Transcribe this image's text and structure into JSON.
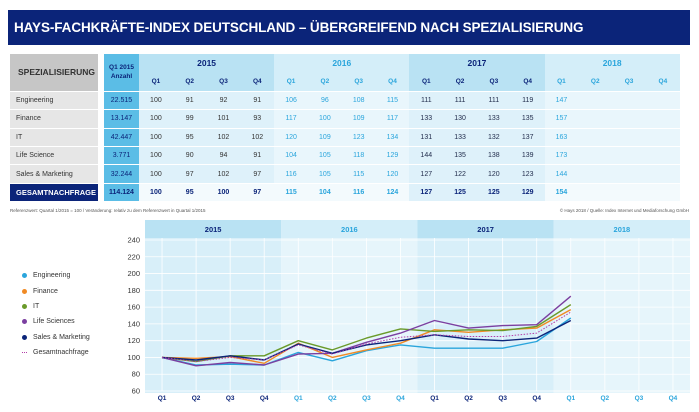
{
  "title": "HAYS-FACHKRÄFTE-INDEX DEUTSCHLAND – ÜBERGREIFEND NACH SPEZIALISIERUNG",
  "table": {
    "header_specialization": "SPEZIALISIERUNG",
    "header_count_line1": "Q1 2015",
    "header_count_line2": "Anzahl",
    "years": [
      "2015",
      "2016",
      "2017",
      "2018"
    ],
    "quarters": [
      "Q1",
      "Q2",
      "Q3",
      "Q4"
    ],
    "rows": [
      {
        "label": "Engineering",
        "count": "22.515",
        "values": [
          "100",
          "91",
          "92",
          "91",
          "106",
          "96",
          "108",
          "115",
          "111",
          "111",
          "111",
          "119",
          "147",
          "",
          "",
          ""
        ]
      },
      {
        "label": "Finance",
        "count": "13.147",
        "values": [
          "100",
          "99",
          "101",
          "93",
          "117",
          "100",
          "109",
          "117",
          "133",
          "130",
          "133",
          "135",
          "157",
          "",
          "",
          ""
        ]
      },
      {
        "label": "IT",
        "count": "42.447",
        "values": [
          "100",
          "95",
          "102",
          "102",
          "120",
          "109",
          "123",
          "134",
          "131",
          "133",
          "132",
          "137",
          "163",
          "",
          "",
          ""
        ]
      },
      {
        "label": "Life Science",
        "count": "3.771",
        "values": [
          "100",
          "90",
          "94",
          "91",
          "104",
          "105",
          "118",
          "129",
          "144",
          "135",
          "138",
          "139",
          "173",
          "",
          "",
          ""
        ]
      },
      {
        "label": "Sales & Marketing",
        "count": "32.244",
        "values": [
          "100",
          "97",
          "102",
          "97",
          "116",
          "105",
          "115",
          "120",
          "127",
          "122",
          "120",
          "123",
          "144",
          "",
          "",
          ""
        ]
      }
    ],
    "total": {
      "label": "GESAMTNACHFRAGE",
      "count": "114.124",
      "values": [
        "100",
        "95",
        "100",
        "97",
        "115",
        "104",
        "116",
        "124",
        "127",
        "125",
        "125",
        "129",
        "154",
        "",
        "",
        ""
      ]
    }
  },
  "footnote_left": "Referenzwert: Quartal 1/2015 = 100 / Veränderung: relativ zu dem Referenzwert in Quartal 1/2015",
  "footnote_right": "© Hays 2018 / Quelle: Index Internet und Mediaforschung GmbH",
  "legend": [
    {
      "label": "Engineering",
      "color": "#2aa5dc",
      "style": "solid"
    },
    {
      "label": "Finance",
      "color": "#f08a24",
      "style": "solid"
    },
    {
      "label": "IT",
      "color": "#6a9a2a",
      "style": "solid"
    },
    {
      "label": "Life Sciences",
      "color": "#7b3fa0",
      "style": "solid"
    },
    {
      "label": "Sales & Marketing",
      "color": "#0b2479",
      "style": "solid"
    },
    {
      "label": "Gesamtnachfrage",
      "color": "#b23ca8",
      "style": "dotted"
    }
  ],
  "chart_data": {
    "type": "line",
    "title": "",
    "xlabel": "",
    "ylabel": "",
    "ylim": [
      60,
      240
    ],
    "yticks": [
      60,
      80,
      100,
      120,
      140,
      160,
      180,
      200,
      220,
      240
    ],
    "grid": true,
    "legend_position": "left",
    "year_groups": [
      "2015",
      "2016",
      "2017",
      "2018"
    ],
    "categories": [
      "Q1",
      "Q2",
      "Q3",
      "Q4",
      "Q1",
      "Q2",
      "Q3",
      "Q4",
      "Q1",
      "Q2",
      "Q3",
      "Q4",
      "Q1",
      "Q2",
      "Q3",
      "Q4"
    ],
    "series": [
      {
        "name": "Engineering",
        "color": "#2aa5dc",
        "style": "solid",
        "values": [
          100,
          91,
          92,
          91,
          106,
          96,
          108,
          115,
          111,
          111,
          111,
          119,
          147
        ]
      },
      {
        "name": "Finance",
        "color": "#f08a24",
        "style": "solid",
        "values": [
          100,
          99,
          101,
          93,
          117,
          100,
          109,
          117,
          133,
          130,
          133,
          135,
          157
        ]
      },
      {
        "name": "IT",
        "color": "#6a9a2a",
        "style": "solid",
        "values": [
          100,
          95,
          102,
          102,
          120,
          109,
          123,
          134,
          131,
          133,
          132,
          137,
          163
        ]
      },
      {
        "name": "Life Sciences",
        "color": "#7b3fa0",
        "style": "solid",
        "values": [
          100,
          90,
          94,
          91,
          104,
          105,
          118,
          129,
          144,
          135,
          138,
          139,
          173
        ]
      },
      {
        "name": "Sales & Marketing",
        "color": "#0b2479",
        "style": "solid",
        "values": [
          100,
          97,
          102,
          97,
          116,
          105,
          115,
          120,
          127,
          122,
          120,
          123,
          144
        ]
      },
      {
        "name": "Gesamtnachfrage",
        "color": "#b23ca8",
        "style": "dotted",
        "values": [
          100,
          95,
          100,
          97,
          115,
          104,
          116,
          124,
          127,
          125,
          125,
          129,
          154
        ]
      }
    ]
  }
}
